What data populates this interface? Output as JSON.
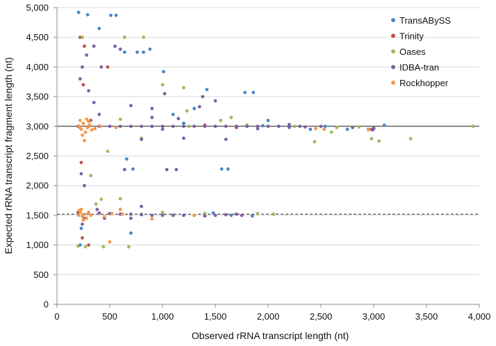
{
  "chart_data": {
    "type": "scatter",
    "xlabel": "Observed rRNA transcript length (nt)",
    "ylabel": "Expected rRNA transcript fragment length (nt)",
    "xlim": [
      0,
      4000
    ],
    "ylim": [
      0,
      5000
    ],
    "x_ticks": [
      0,
      500,
      1000,
      1500,
      2000,
      2500,
      3000,
      3500,
      4000
    ],
    "y_ticks": [
      0,
      500,
      1000,
      1500,
      2000,
      2500,
      3000,
      3500,
      4000,
      4500,
      5000
    ],
    "x_tick_labels": [
      "0",
      "500",
      "1,000",
      "1,500",
      "2,000",
      "2,500",
      "3,000",
      "3,500",
      "4,000"
    ],
    "y_tick_labels": [
      "0",
      "500",
      "1,000",
      "1,500",
      "2,000",
      "2,500",
      "3,000",
      "3,500",
      "4,000",
      "4,500",
      "5,000"
    ],
    "grid": "horizontal",
    "legend_position": "top-right",
    "reference_lines": [
      {
        "y": 3000,
        "style": "solid"
      },
      {
        "y": 1520,
        "style": "dashed"
      }
    ],
    "series": [
      {
        "name": "TransABySS",
        "color": "#4a86c6",
        "points": [
          [
            205,
            4920
          ],
          [
            290,
            4880
          ],
          [
            510,
            4870
          ],
          [
            560,
            4870
          ],
          [
            880,
            4300
          ],
          [
            1010,
            3920
          ],
          [
            1860,
            3570
          ],
          [
            1420,
            3620
          ],
          [
            1780,
            3570
          ],
          [
            660,
            2450
          ],
          [
            720,
            2280
          ],
          [
            1560,
            2280
          ],
          [
            1620,
            2280
          ],
          [
            220,
            1000
          ],
          [
            230,
            1280
          ],
          [
            2750,
            2950
          ],
          [
            2950,
            2950
          ],
          [
            3100,
            3020
          ],
          [
            2540,
            3000
          ],
          [
            2200,
            2980
          ],
          [
            1950,
            3010
          ],
          [
            1200,
            3050
          ],
          [
            640,
            4250
          ],
          [
            760,
            4250
          ],
          [
            820,
            4250
          ],
          [
            400,
            4650
          ],
          [
            1100,
            3200
          ],
          [
            1650,
            1500
          ],
          [
            1850,
            1490
          ],
          [
            1480,
            1540
          ],
          [
            700,
            1200
          ],
          [
            2000,
            3100
          ],
          [
            2400,
            2950
          ],
          [
            1300,
            3300
          ]
        ]
      },
      {
        "name": "Trinity",
        "color": "#c0504d",
        "points": [
          [
            220,
            4500
          ],
          [
            260,
            4350
          ],
          [
            240,
            1120
          ],
          [
            230,
            2390
          ],
          [
            300,
            1000
          ],
          [
            2980,
            2950
          ],
          [
            3000,
            2970
          ],
          [
            1700,
            2980
          ],
          [
            900,
            3000
          ],
          [
            1400,
            3020
          ],
          [
            320,
            3100
          ],
          [
            480,
            4000
          ],
          [
            250,
            3700
          ],
          [
            1100,
            1500
          ],
          [
            600,
            1520
          ]
        ]
      },
      {
        "name": "Oases",
        "color": "#9bbb59",
        "points": [
          [
            3940,
            3000
          ],
          [
            3350,
            2790
          ],
          [
            2600,
            2900
          ],
          [
            2440,
            2740
          ],
          [
            2980,
            2790
          ],
          [
            3050,
            2750
          ],
          [
            2650,
            2980
          ],
          [
            2860,
            2990
          ],
          [
            2250,
            3000
          ],
          [
            1800,
            3020
          ],
          [
            2050,
            1520
          ],
          [
            1900,
            1530
          ],
          [
            1000,
            1550
          ],
          [
            1400,
            1530
          ],
          [
            200,
            980
          ],
          [
            270,
            970
          ],
          [
            440,
            970
          ],
          [
            680,
            970
          ],
          [
            1230,
            3260
          ],
          [
            1000,
            3700
          ],
          [
            1200,
            3650
          ],
          [
            1550,
            3100
          ],
          [
            1650,
            3150
          ],
          [
            320,
            2170
          ],
          [
            480,
            2580
          ],
          [
            420,
            1770
          ],
          [
            600,
            1780
          ],
          [
            370,
            1690
          ],
          [
            800,
            1520
          ],
          [
            600,
            3120
          ],
          [
            800,
            2800
          ],
          [
            1250,
            3000
          ],
          [
            240,
            4500
          ],
          [
            640,
            4500
          ],
          [
            820,
            4500
          ]
        ]
      },
      {
        "name": "IDBA-tran",
        "color": "#7e60a0",
        "points": [
          [
            200,
            3000
          ],
          [
            300,
            3000
          ],
          [
            400,
            3000
          ],
          [
            500,
            3000
          ],
          [
            600,
            3000
          ],
          [
            700,
            3000
          ],
          [
            800,
            3000
          ],
          [
            900,
            3000
          ],
          [
            1000,
            3000
          ],
          [
            1100,
            3000
          ],
          [
            1200,
            3000
          ],
          [
            1300,
            3000
          ],
          [
            1400,
            3000
          ],
          [
            1500,
            3000
          ],
          [
            1600,
            3000
          ],
          [
            1700,
            3000
          ],
          [
            1800,
            3000
          ],
          [
            1900,
            3000
          ],
          [
            2000,
            3000
          ],
          [
            2100,
            3000
          ],
          [
            2200,
            3000
          ],
          [
            2300,
            3000
          ],
          [
            2500,
            3000
          ],
          [
            3000,
            2960
          ],
          [
            2990,
            2940
          ],
          [
            1350,
            3330
          ],
          [
            1380,
            3500
          ],
          [
            1500,
            3430
          ],
          [
            1020,
            3550
          ],
          [
            1000,
            2950
          ],
          [
            1200,
            2800
          ],
          [
            800,
            2780
          ],
          [
            900,
            3150
          ],
          [
            1150,
            3130
          ],
          [
            400,
            3200
          ],
          [
            350,
            3400
          ],
          [
            300,
            3600
          ],
          [
            220,
            3800
          ],
          [
            240,
            4000
          ],
          [
            280,
            4200
          ],
          [
            350,
            4350
          ],
          [
            550,
            4350
          ],
          [
            600,
            4300
          ],
          [
            420,
            4000
          ],
          [
            1040,
            2270
          ],
          [
            1130,
            2270
          ],
          [
            640,
            2270
          ],
          [
            260,
            2000
          ],
          [
            230,
            2200
          ],
          [
            200,
            1550
          ],
          [
            300,
            1550
          ],
          [
            400,
            1540
          ],
          [
            500,
            1530
          ],
          [
            600,
            1520
          ],
          [
            700,
            1520
          ],
          [
            800,
            1510
          ],
          [
            900,
            1500
          ],
          [
            1000,
            1500
          ],
          [
            1100,
            1500
          ],
          [
            1200,
            1500
          ],
          [
            1300,
            1500
          ],
          [
            1400,
            1490
          ],
          [
            1500,
            1500
          ],
          [
            1600,
            1510
          ],
          [
            1700,
            1520
          ],
          [
            1750,
            1500
          ],
          [
            450,
            1450
          ],
          [
            700,
            1450
          ],
          [
            380,
            1600
          ],
          [
            240,
            1350
          ],
          [
            260,
            1450
          ],
          [
            800,
            1650
          ],
          [
            900,
            3300
          ],
          [
            700,
            3350
          ],
          [
            2200,
            3030
          ],
          [
            2350,
            2990
          ],
          [
            1900,
            2960
          ],
          [
            1600,
            2780
          ],
          [
            2800,
            2980
          ]
        ]
      },
      {
        "name": "Rockhopper",
        "color": "#f79646",
        "points": [
          [
            210,
            3000
          ],
          [
            230,
            2950
          ],
          [
            250,
            3050
          ],
          [
            270,
            2900
          ],
          [
            290,
            2980
          ],
          [
            310,
            3020
          ],
          [
            240,
            2850
          ],
          [
            220,
            3100
          ],
          [
            260,
            2760
          ],
          [
            300,
            3080
          ],
          [
            280,
            3120
          ],
          [
            215,
            2980
          ],
          [
            330,
            2940
          ],
          [
            205,
            1500
          ],
          [
            220,
            1550
          ],
          [
            240,
            1480
          ],
          [
            260,
            1520
          ],
          [
            280,
            1450
          ],
          [
            300,
            1550
          ],
          [
            320,
            1500
          ],
          [
            230,
            1600
          ],
          [
            250,
            1420
          ],
          [
            210,
            1580
          ],
          [
            2530,
            2950
          ],
          [
            2450,
            2960
          ],
          [
            2950,
            2940
          ],
          [
            450,
            1480
          ],
          [
            520,
            1530
          ],
          [
            1300,
            1500
          ],
          [
            900,
            1440
          ],
          [
            600,
            1600
          ],
          [
            410,
            3000
          ],
          [
            560,
            2980
          ],
          [
            500,
            1050
          ],
          [
            360,
            2960
          ],
          [
            620,
            1520
          ]
        ]
      }
    ]
  }
}
